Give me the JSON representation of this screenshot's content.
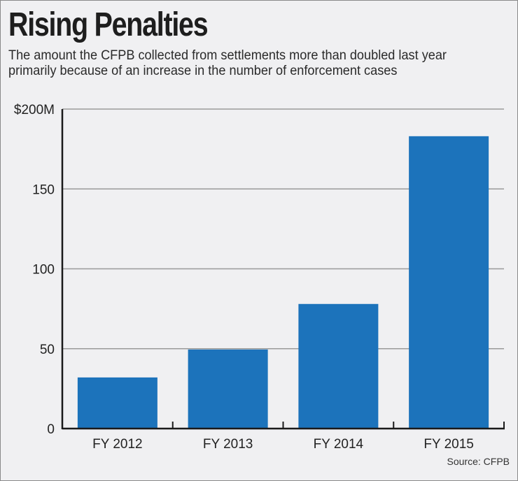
{
  "chart_data": {
    "type": "bar",
    "title": "Rising Penalties",
    "subtitle": "The amount the CFPB collected from settlements more than doubled last year primarily because of an increase in the number of enforcement cases",
    "categories": [
      "FY 2012",
      "FY 2013",
      "FY 2014",
      "FY 2015"
    ],
    "values": [
      32,
      49.5,
      78,
      183
    ],
    "units": "millions of dollars",
    "xlabel": "",
    "ylabel": "",
    "ylim": [
      0,
      200
    ],
    "yticks": [
      0,
      50,
      100,
      150,
      200
    ],
    "ytick_labels": [
      "0",
      "50",
      "100",
      "150",
      "$200M"
    ],
    "grid": true,
    "legend": "none",
    "bar_color": "#1c73bb",
    "source": "Source: CFPB"
  }
}
